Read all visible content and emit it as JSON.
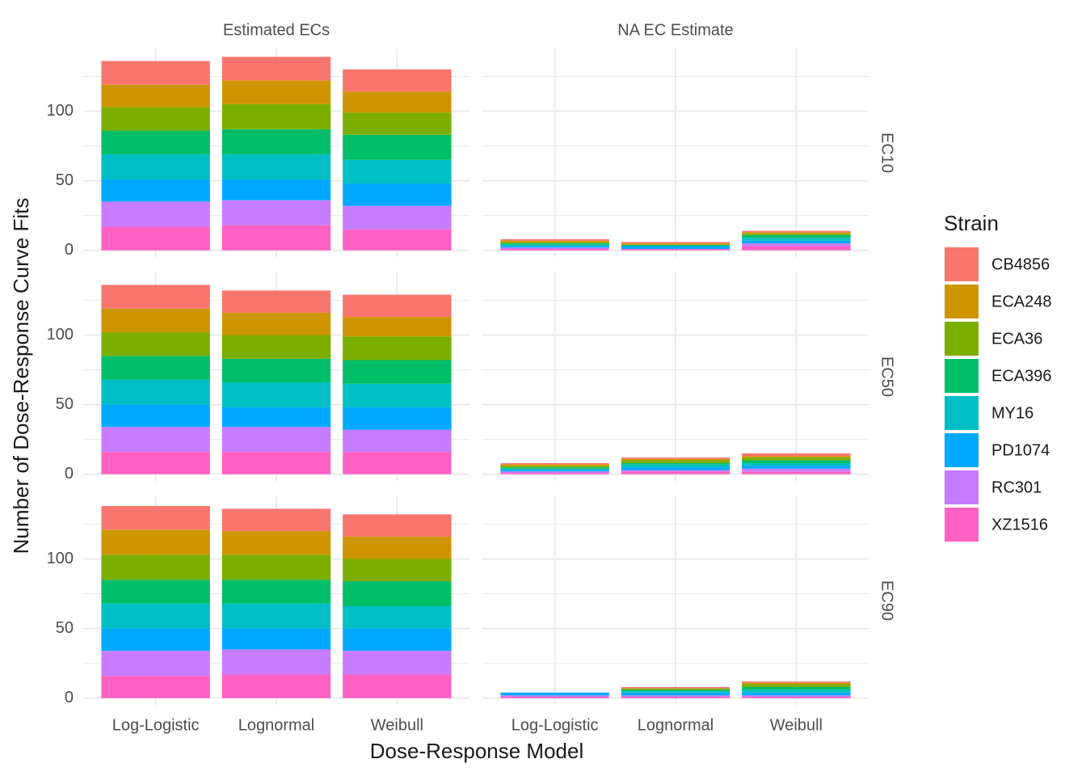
{
  "chart_data": {
    "type": "bar",
    "stacked": true,
    "x_label": "Dose-Response Model",
    "y_label": "Number of Dose-Response Curve Fits",
    "legend_title": "Strain",
    "col_facets": [
      "Estimated ECs",
      "NA EC Estimate"
    ],
    "row_facets": [
      "EC10",
      "EC50",
      "EC90"
    ],
    "categories": [
      "Log-Logistic",
      "Lognormal",
      "Weibull"
    ],
    "ylim": [
      -4.8,
      145
    ],
    "yticks": [
      0,
      50,
      100
    ],
    "minor_yticks": [
      25,
      75,
      125
    ],
    "grid": true,
    "series": [
      {
        "name": "CB4856",
        "color": "#F8766D"
      },
      {
        "name": "ECA248",
        "color": "#CD9600"
      },
      {
        "name": "ECA36",
        "color": "#7CAE00"
      },
      {
        "name": "ECA396",
        "color": "#00BE67"
      },
      {
        "name": "MY16",
        "color": "#00BFC4"
      },
      {
        "name": "PD1074",
        "color": "#00A9FF"
      },
      {
        "name": "RC301",
        "color": "#C77CFF"
      },
      {
        "name": "XZ1516",
        "color": "#FF61C3"
      }
    ],
    "panels": [
      [
        {
          "values": [
            [
              17,
              17,
              16
            ],
            [
              16,
              17,
              15
            ],
            [
              17,
              18,
              16
            ],
            [
              17,
              18,
              18
            ],
            [
              18,
              18,
              17
            ],
            [
              16,
              15,
              16
            ],
            [
              18,
              18,
              17
            ],
            [
              17,
              18,
              15
            ]
          ]
        },
        {
          "values": [
            [
              1,
              1,
              1
            ],
            [
              1,
              1,
              1
            ],
            [
              1,
              0,
              1
            ],
            [
              1,
              1,
              2
            ],
            [
              1,
              0,
              2
            ],
            [
              1,
              2,
              2
            ],
            [
              1,
              0,
              2
            ],
            [
              1,
              1,
              3
            ]
          ]
        }
      ],
      [
        {
          "values": [
            [
              17,
              16,
              16
            ],
            [
              17,
              16,
              14
            ],
            [
              17,
              17,
              17
            ],
            [
              17,
              17,
              17
            ],
            [
              18,
              18,
              17
            ],
            [
              16,
              14,
              16
            ],
            [
              18,
              18,
              16
            ],
            [
              16,
              16,
              16
            ]
          ]
        },
        {
          "values": [
            [
              1,
              1,
              2
            ],
            [
              1,
              1,
              1
            ],
            [
              1,
              2,
              2
            ],
            [
              1,
              1,
              2
            ],
            [
              1,
              2,
              2
            ],
            [
              1,
              2,
              2
            ],
            [
              1,
              1,
              2
            ],
            [
              1,
              2,
              2
            ]
          ]
        }
      ],
      [
        {
          "values": [
            [
              17,
              16,
              16
            ],
            [
              18,
              17,
              16
            ],
            [
              18,
              18,
              16
            ],
            [
              17,
              17,
              18
            ],
            [
              18,
              18,
              16
            ],
            [
              16,
              15,
              16
            ],
            [
              18,
              18,
              17
            ],
            [
              16,
              17,
              17
            ]
          ]
        },
        {
          "values": [
            [
              0,
              1,
              1
            ],
            [
              0,
              0,
              1
            ],
            [
              0,
              1,
              2
            ],
            [
              0,
              1,
              2
            ],
            [
              0,
              1,
              2
            ],
            [
              2,
              2,
              2
            ],
            [
              1,
              1,
              1
            ],
            [
              1,
              1,
              1
            ]
          ]
        }
      ]
    ]
  }
}
